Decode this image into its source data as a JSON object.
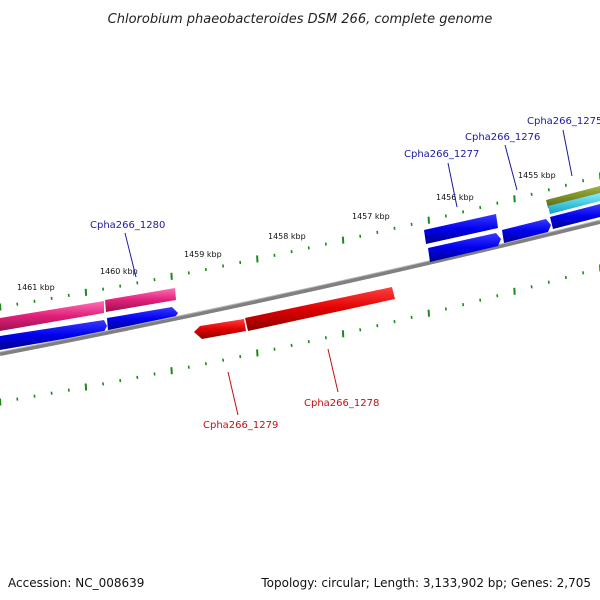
{
  "title": "Chlorobium phaeobacteroides DSM 266, complete genome",
  "footer": {
    "accession": "Accession: NC_008639",
    "summary": "Topology: circular; Length: 3,133,902 bp; Genes: 2,705"
  },
  "scale_labels": [
    "1461 kbp",
    "1460 kbp",
    "1459 kbp",
    "1458 kbp",
    "1457 kbp",
    "1456 kbp",
    "1455 kbp"
  ],
  "gene_labels": {
    "g1280": "Cpha266_1280",
    "g1279": "Cpha266_1279",
    "g1278": "Cpha266_1278",
    "g1277": "Cpha266_1277",
    "g1276": "Cpha266_1276",
    "g1275": "Cpha266_1275"
  },
  "colors": {
    "forward_gene": "#0000ee",
    "reverse_gene": "#ee0000",
    "feature_pink": "#e0207a",
    "feature_olive": "#7a8a20",
    "feature_cyan": "#20d0e0",
    "backbone": "#808080",
    "ticks": "#1a8a1a"
  }
}
